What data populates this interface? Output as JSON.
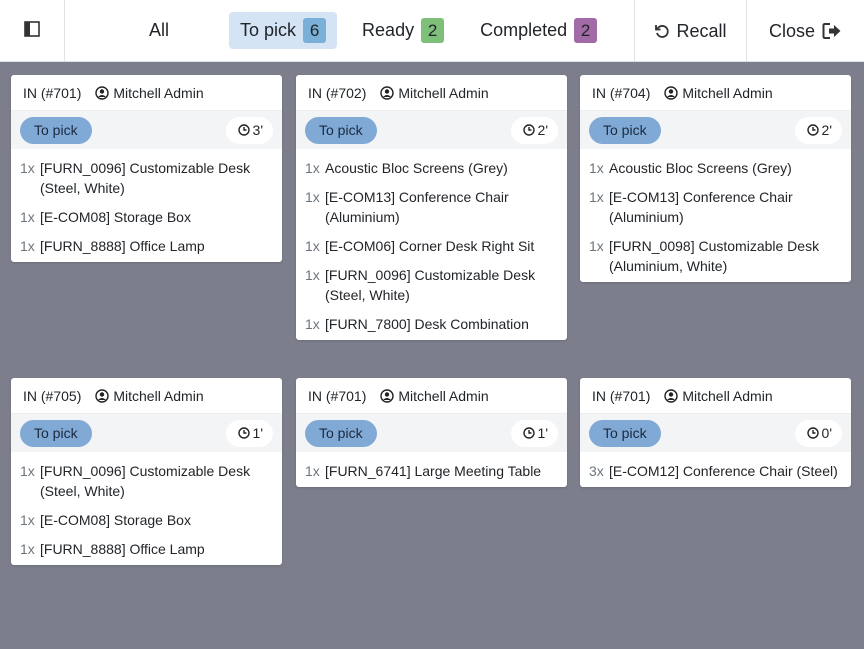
{
  "topbar": {
    "tabs": [
      {
        "label": "All",
        "badge": ""
      },
      {
        "label": "To pick",
        "badge": "6",
        "badge_color": "#7ab0d8"
      },
      {
        "label": "Ready",
        "badge": "2",
        "badge_color": "#7ec07a"
      },
      {
        "label": "Completed",
        "badge": "2",
        "badge_color": "#a36aa8"
      }
    ],
    "recall_label": "Recall",
    "close_label": "Close"
  },
  "orders": [
    {
      "ref": "IN (#701)",
      "user": "Mitchell Admin",
      "status": "To pick",
      "time": "3'",
      "lines": [
        {
          "qty": "1x",
          "name": "[FURN_0096] Customizable Desk (Steel, White)"
        },
        {
          "qty": "1x",
          "name": "[E-COM08] Storage Box"
        },
        {
          "qty": "1x",
          "name": "[FURN_8888] Office Lamp"
        }
      ]
    },
    {
      "ref": "IN (#702)",
      "user": "Mitchell Admin",
      "status": "To pick",
      "time": "2'",
      "lines": [
        {
          "qty": "1x",
          "name": "Acoustic Bloc Screens (Grey)"
        },
        {
          "qty": "1x",
          "name": "[E-COM13] Conference Chair (Aluminium)"
        },
        {
          "qty": "1x",
          "name": "[E-COM06] Corner Desk Right Sit"
        },
        {
          "qty": "1x",
          "name": "[FURN_0096] Customizable Desk (Steel, White)"
        },
        {
          "qty": "1x",
          "name": "[FURN_7800] Desk Combination"
        }
      ]
    },
    {
      "ref": "IN (#704)",
      "user": "Mitchell Admin",
      "status": "To pick",
      "time": "2'",
      "lines": [
        {
          "qty": "1x",
          "name": "Acoustic Bloc Screens (Grey)"
        },
        {
          "qty": "1x",
          "name": "[E-COM13] Conference Chair (Aluminium)"
        },
        {
          "qty": "1x",
          "name": "[FURN_0098] Customizable Desk (Aluminium, White)"
        }
      ]
    },
    {
      "ref": "IN (#705)",
      "user": "Mitchell Admin",
      "status": "To pick",
      "time": "1'",
      "lines": [
        {
          "qty": "1x",
          "name": "[FURN_0096] Customizable Desk (Steel, White)"
        },
        {
          "qty": "1x",
          "name": "[E-COM08] Storage Box"
        },
        {
          "qty": "1x",
          "name": "[FURN_8888] Office Lamp"
        }
      ]
    },
    {
      "ref": "IN (#701)",
      "user": "Mitchell Admin",
      "status": "To pick",
      "time": "1'",
      "lines": [
        {
          "qty": "1x",
          "name": "[FURN_6741] Large Meeting Table"
        }
      ]
    },
    {
      "ref": "IN (#701)",
      "user": "Mitchell Admin",
      "status": "To pick",
      "time": "0'",
      "lines": [
        {
          "qty": "3x",
          "name": "[E-COM12] Conference Chair (Steel)"
        }
      ]
    }
  ]
}
